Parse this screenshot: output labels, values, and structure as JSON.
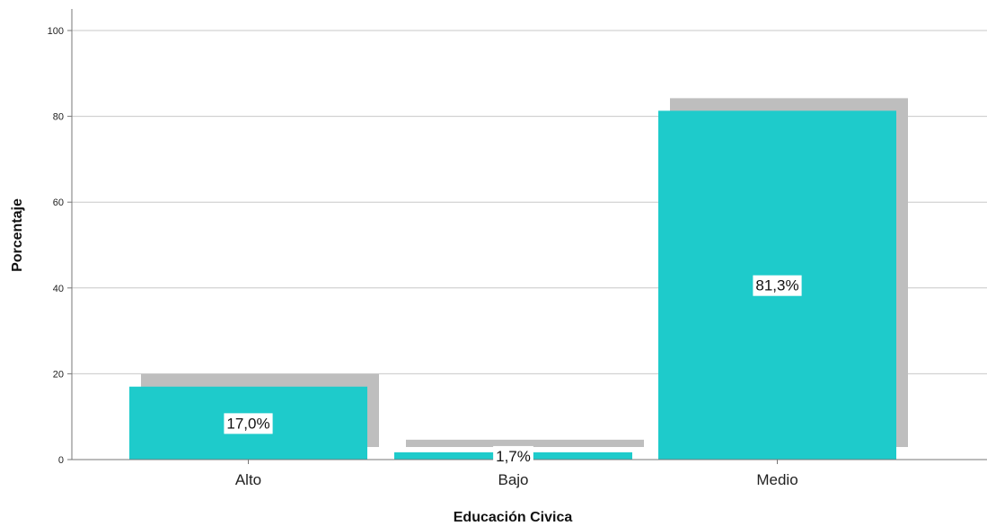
{
  "chart_data": {
    "type": "bar",
    "categories": [
      "Alto",
      "Bajo",
      "Medio"
    ],
    "values": [
      17.0,
      1.7,
      81.3
    ],
    "data_labels": [
      "17,0%",
      "1,7%",
      "81,3%"
    ],
    "xlabel": "Educación Civica",
    "ylabel": "Porcentaje",
    "ylim": [
      0,
      100
    ],
    "yticks": [
      0,
      20,
      40,
      60,
      80,
      100
    ],
    "grid": true,
    "shadow": true,
    "colors": {
      "bar": "#1ECBCB",
      "shadow": "#BEBEBE",
      "grid": "#C8C8C8",
      "axis": "#777777"
    }
  }
}
